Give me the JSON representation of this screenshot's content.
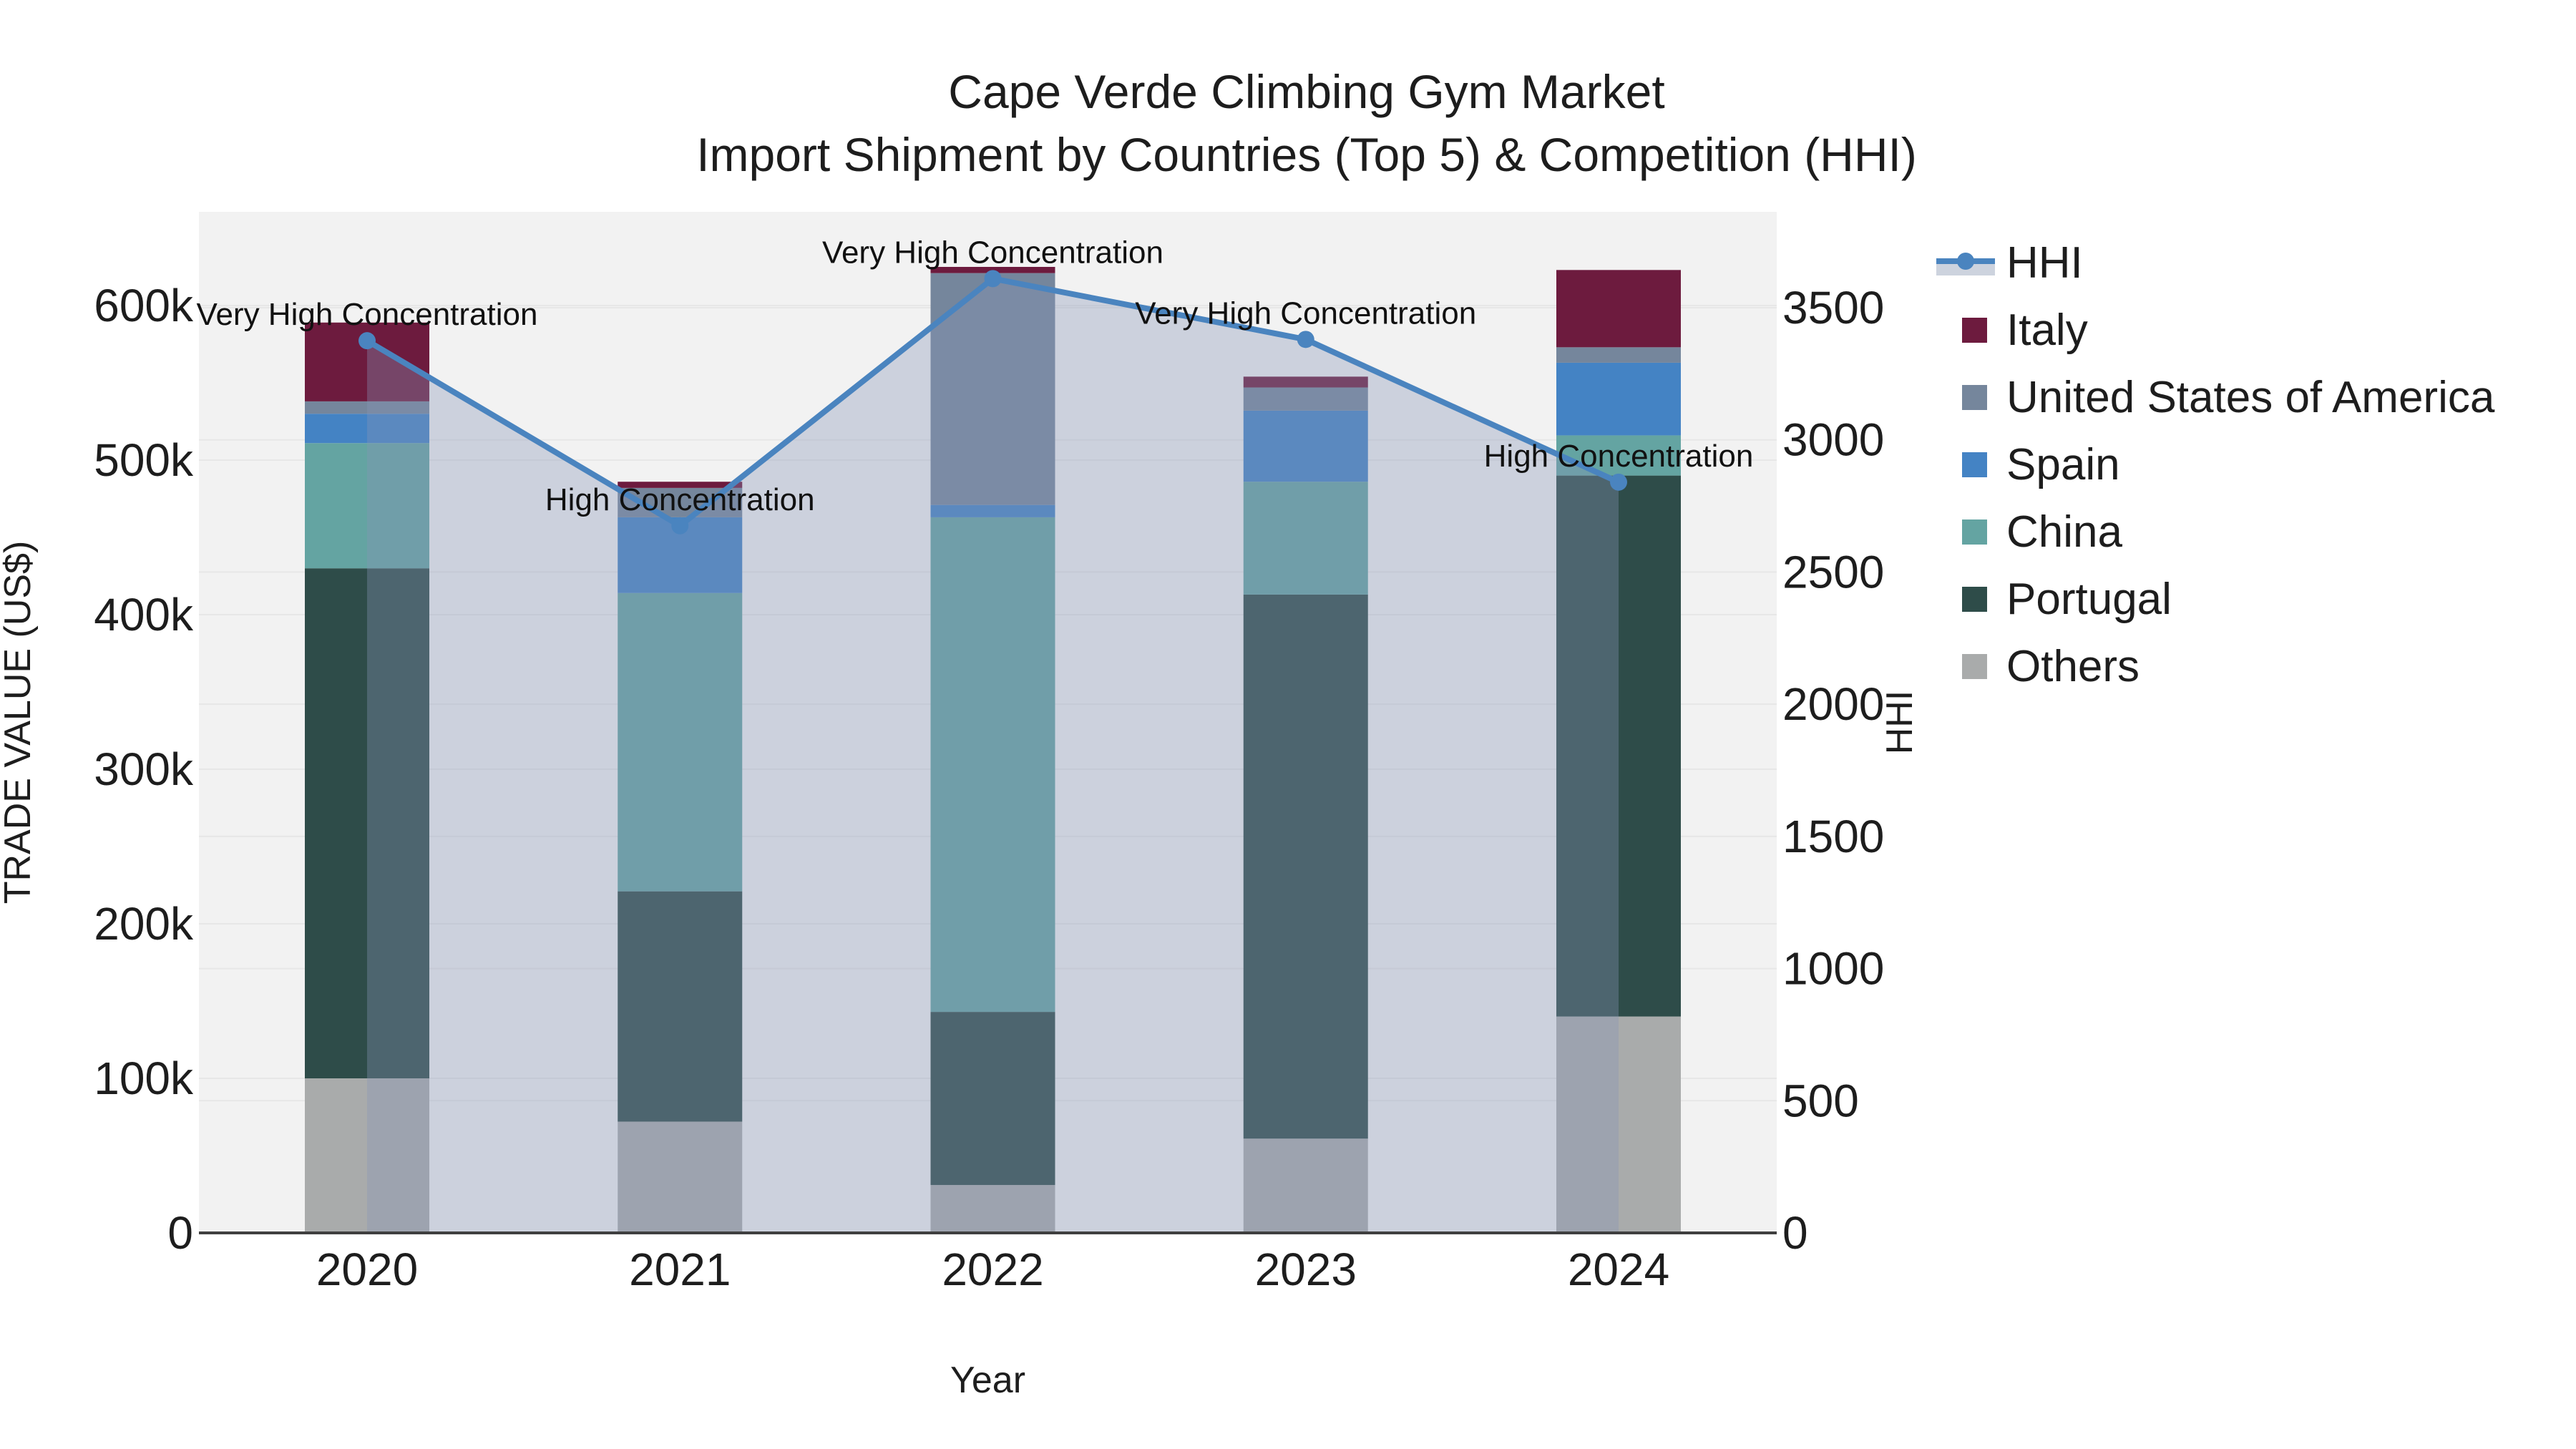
{
  "title": {
    "line1": "Cape Verde Climbing Gym Market",
    "line2": "Import Shipment by Countries (Top 5) & Competition (HHI)"
  },
  "legend": {
    "items": [
      {
        "label": "HHI",
        "type": "line",
        "color": "#4a84bf",
        "band_color": "#cdd3de"
      },
      {
        "label": "Italy",
        "type": "square",
        "color": "#6d1b3e"
      },
      {
        "label": "United States of America",
        "type": "square",
        "color": "#75869c"
      },
      {
        "label": "Spain",
        "type": "square",
        "color": "#4483c4"
      },
      {
        "label": "China",
        "type": "square",
        "color": "#64a4a2"
      },
      {
        "label": "Portugal",
        "type": "square",
        "color": "#2e4c49"
      },
      {
        "label": "Others",
        "type": "square",
        "color": "#a9abab"
      }
    ]
  },
  "chart_data": {
    "type": "combo: stacked bar (trade value) + line with area fill (HHI)",
    "categories": [
      "2020",
      "2021",
      "2022",
      "2023",
      "2024"
    ],
    "stack_order_bottom_to_top": [
      "Others",
      "Portugal",
      "China",
      "Spain",
      "United States of America",
      "Italy"
    ],
    "series": [
      {
        "name": "Others",
        "color": "#a9abab",
        "values": [
          100000,
          72000,
          31000,
          61000,
          140000
        ]
      },
      {
        "name": "Portugal",
        "color": "#2e4c49",
        "values": [
          330000,
          149000,
          112000,
          352000,
          350000
        ]
      },
      {
        "name": "China",
        "color": "#64a4a2",
        "values": [
          81000,
          193000,
          320000,
          73000,
          26000
        ]
      },
      {
        "name": "Spain",
        "color": "#4483c4",
        "values": [
          19000,
          49000,
          8000,
          46000,
          47000
        ]
      },
      {
        "name": "United States of America",
        "color": "#75869c",
        "values": [
          8000,
          19000,
          150000,
          15000,
          10000
        ]
      },
      {
        "name": "Italy",
        "color": "#6d1b3e",
        "values": [
          51000,
          4000,
          4000,
          7000,
          50000
        ]
      }
    ],
    "totals": [
      589000,
      486000,
      625000,
      554000,
      623000
    ],
    "line_series": {
      "name": "HHI",
      "color": "#4a84bf",
      "area_fill_color": "rgba(136,150,182,0.35)",
      "values": [
        3375,
        2675,
        3610,
        3380,
        2840
      ]
    },
    "annotations": [
      {
        "category": "2020",
        "text": "Very High Concentration"
      },
      {
        "category": "2021",
        "text": "High Concentration"
      },
      {
        "category": "2022",
        "text": "Very High Concentration"
      },
      {
        "category": "2023",
        "text": "Very High Concentration"
      },
      {
        "category": "2024",
        "text": "High Concentration"
      }
    ],
    "y_left": {
      "title": "TRADE VALUE (US$)",
      "tick_labels": [
        "0",
        "100k",
        "200k",
        "300k",
        "400k",
        "500k",
        "600k"
      ],
      "tick_values": [
        0,
        100000,
        200000,
        300000,
        400000,
        500000,
        600000
      ],
      "range_top_value": 660000
    },
    "y_right": {
      "title": "HHI",
      "tick_labels": [
        "0",
        "500",
        "1000",
        "1500",
        "2000",
        "2500",
        "3000",
        "3500"
      ],
      "tick_values": [
        0,
        500,
        1000,
        1500,
        2000,
        2500,
        3000,
        3500
      ]
    },
    "x_axis": {
      "title": "Year"
    },
    "plot_background": "#f2f2f2",
    "gridline_color": "#e7e7e7",
    "axis_line_color": "#3f3f3f",
    "legend_position": "right",
    "grid": true
  }
}
